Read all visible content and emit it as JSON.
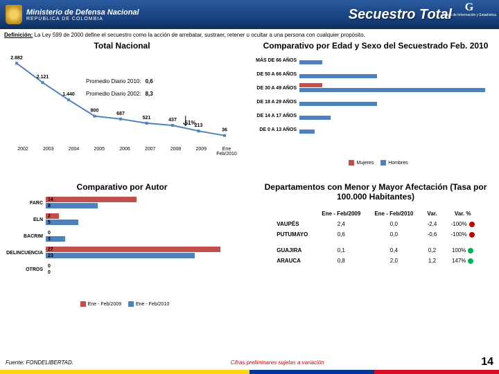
{
  "header": {
    "ministry": "Ministerio de Defensa Nacional",
    "republic": "REPÚBLICA DE COLOMBIA",
    "title": "Secuestro Total",
    "group": "Grupo de Información y Estadística"
  },
  "definition": {
    "label": "Definición:",
    "text": "La Ley 599 de 2000 define el secuestro como la acción de arrebatar, sustraer, retener u ocultar a una persona con cualquier propósito."
  },
  "totalNacional": {
    "title": "Total Nacional",
    "promedio1_label": "Promedio Diario 2010:",
    "promedio1_val": "0,6",
    "promedio2_label": "Promedio Diario 2002:",
    "promedio2_val": "8,3",
    "callout": "-51%",
    "years": [
      "2002",
      "2003",
      "2004",
      "2005",
      "2006",
      "2007",
      "2008",
      "2009",
      "Ene Feb/2010"
    ],
    "values": [
      2882,
      2121,
      1440,
      800,
      687,
      521,
      437,
      213,
      36
    ],
    "ymax": 3000,
    "line_color": "#4f81bd",
    "marker_color": "#4f81bd",
    "label_fontsize": 7
  },
  "ageSex": {
    "title": "Comparativo por Edad y Sexo del Secuestrado Feb. 2010",
    "categories": [
      "MÁS DE 66 AÑOS",
      "DE 50 A 66 AÑOS",
      "DE 30 A 49 AÑOS",
      "DE 18 A 29 AÑOS",
      "DE 14 A 17 AÑOS",
      "DE 0 A 13 AÑOS"
    ],
    "mujeres": [
      0,
      0,
      3,
      0,
      0,
      0
    ],
    "hombres": [
      3,
      10,
      24,
      10,
      4,
      2
    ],
    "xmax": 26,
    "color_mujeres": "#c0504d",
    "color_hombres": "#4f81bd",
    "legend_m": "Mujeres",
    "legend_h": "Hombres"
  },
  "autor": {
    "title": "Comparativo por Autor",
    "categories": [
      "FARC",
      "ELN",
      "BACRIM",
      "DELINCUENCIA",
      "OTROS"
    ],
    "s2009": [
      14,
      2,
      0,
      27,
      0
    ],
    "s2010": [
      8,
      5,
      3,
      23,
      0
    ],
    "xmax": 30,
    "color_2009": "#c0504d",
    "color_2010": "#4f81bd",
    "legend_a": "Ene - Feb/2009",
    "legend_b": "Ene - Feb/2010"
  },
  "dept": {
    "title": "Departamentos con Menor y Mayor Afectación (Tasa por 100.000 Habitantes)",
    "col1": "Ene - Feb/2009",
    "col2": "Ene - Feb/2010",
    "col3": "Var.",
    "col4": "Var. %",
    "rows": [
      {
        "name": "VAUPÉS",
        "a": "2,4",
        "b": "0,0",
        "v": "-2,4",
        "p": "-100%",
        "dot": "#c00000"
      },
      {
        "name": "PUTUMAYO",
        "a": "0,6",
        "b": "0,0",
        "v": "-0,6",
        "p": "-100%",
        "dot": "#c00000"
      },
      {
        "name": "",
        "a": "",
        "b": "",
        "v": "",
        "p": "",
        "dot": ""
      },
      {
        "name": "GUAJIRA",
        "a": "0,1",
        "b": "0,4",
        "v": "0,2",
        "p": "100%",
        "dot": "#00b050"
      },
      {
        "name": "ARAUCA",
        "a": "0,8",
        "b": "2,0",
        "v": "1,2",
        "p": "147%",
        "dot": "#00b050"
      }
    ]
  },
  "footer": {
    "fuente": "Fuente: FONDELIBERTAD.",
    "cifras": "Cifras preliminares sujetas a variación",
    "page": "14"
  }
}
